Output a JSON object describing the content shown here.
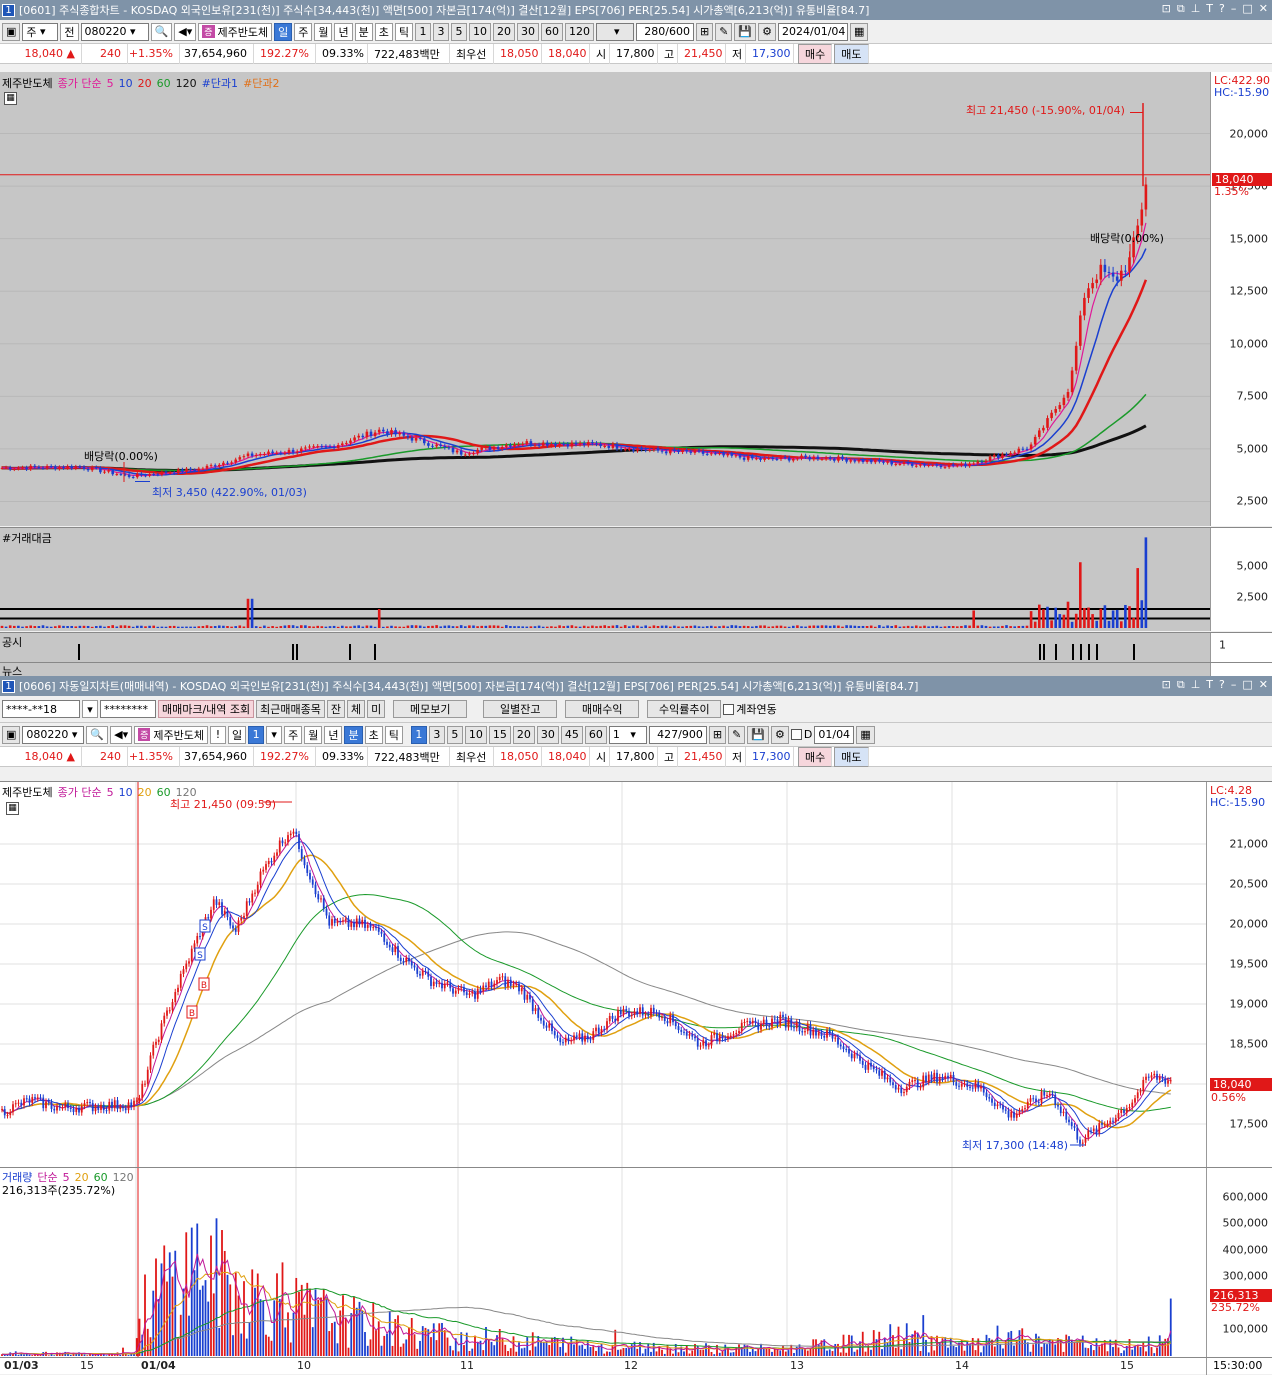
{
  "top": {
    "title": "[0601] 주식종합차트 - KOSDAQ 외국인보유[231(천)] 주식수[34,443(천)] 액면[500] 자본금[174(억)] 결산[12월] EPS[706] PER[25.54] 시가총액[6,213(억)] 유통비율[84.7]",
    "window_num": "1",
    "toolbar": {
      "type": "주",
      "mode": "전",
      "code": "080220",
      "stock_name": "제주반도체",
      "stock_badge": "증",
      "periods": [
        "일",
        "주",
        "월",
        "년",
        "분",
        "초",
        "틱"
      ],
      "active_period": "일",
      "intervals": [
        "1",
        "3",
        "5",
        "10",
        "20",
        "30",
        "60",
        "120"
      ],
      "count": "280",
      "count_total": "/600",
      "date": "2024/01/04"
    },
    "quote": {
      "price": "18,040 ▲",
      "change": "240",
      "pct": "+1.35%",
      "volume": "37,654,960",
      "vol_ratio": "192.27%",
      "turnover": "09.33%",
      "amount": "722,483백만",
      "best_label": "최우선",
      "ask": "18,050",
      "bid": "18,040",
      "open_label": "시",
      "open": "17,800",
      "high_label": "고",
      "high": "21,450",
      "low_label": "저",
      "low": "17,300",
      "buy": "매수",
      "sell": "매도"
    },
    "legend": {
      "name": "제주반도체",
      "ma_label": "종가 단순",
      "ma": [
        "5",
        "10",
        "20",
        "60",
        "120"
      ],
      "avg1": "#단과1",
      "avg2": "#단과2"
    },
    "corner": {
      "lc": "LC:422.90",
      "hc": "HC:-15.90"
    },
    "price_axis": [
      "20,000",
      "17,500",
      "15,000",
      "12,500",
      "10,000",
      "7,500",
      "5,000",
      "2,500"
    ],
    "price_axis_values": [
      20000,
      17500,
      15000,
      12500,
      10000,
      7500,
      5000,
      2500
    ],
    "current_tag": {
      "price": "18,040",
      "pct": "1.35%"
    },
    "ann_high": "최고 21,450 (-15.90%, 01/04)",
    "ann_low": "최저 3,450 (422.90%, 01/03)",
    "ann_div1": "배당락(0.00%)",
    "ann_div2": "배당락(0.00%)",
    "vol_title": "#거래대금",
    "vol_axis": [
      "5,000",
      "2,500"
    ],
    "disclosure_label": "공시",
    "disclosure_axis": "1",
    "news_label": "뉴스",
    "colors": {
      "ma5": "#e01898",
      "ma10": "#1a3fd0",
      "ma20": "#e01818",
      "ma60": "#1a9a2a",
      "ma120": "#111111"
    }
  },
  "bottom": {
    "title": "[0606] 자동일지차트(매매내역) - KOSDAQ 외국인보유[231(천)] 주식수[34,443(천)] 액면[500] 자본금[174(억)] 결산[12월] EPS[706] PER[25.54] 시가총액[6,213(억)] 유통비율[84.7]",
    "window_num": "1",
    "account": {
      "id": "****-**18",
      "pw": "********",
      "btn_mark": "매매마크/내역 조회",
      "btn_recent": "최근매매종목",
      "b1": "잔",
      "b2": "체",
      "b3": "미",
      "btn_memo": "메모보기",
      "btn_daily": "일별잔고",
      "btn_profit": "매매수익",
      "btn_return": "수익률추이",
      "chk_link": "계좌연동"
    },
    "toolbar": {
      "code": "080220",
      "stock_name": "제주반도체",
      "stock_badge": "증",
      "periods": [
        "일",
        "1",
        "주",
        "월",
        "년",
        "분",
        "초",
        "틱"
      ],
      "intervals": [
        "1",
        "3",
        "5",
        "10",
        "15",
        "20",
        "30",
        "45",
        "60"
      ],
      "unit": "1",
      "count": "427",
      "count_total": "/900",
      "chk_d": "D",
      "date": "01/04"
    },
    "quote": {
      "price": "18,040 ▲",
      "change": "240",
      "pct": "+1.35%",
      "volume": "37,654,960",
      "vol_ratio": "192.27%",
      "turnover": "09.33%",
      "amount": "722,483백만",
      "best_label": "최우선",
      "ask": "18,050",
      "bid": "18,040",
      "open_label": "시",
      "open": "17,800",
      "high_label": "고",
      "high": "21,450",
      "low_label": "저",
      "low": "17,300",
      "buy": "매수",
      "sell": "매도"
    },
    "legend": {
      "name": "제주반도체",
      "ma_label": "종가 단순",
      "ma": [
        "5",
        "10",
        "20",
        "60",
        "120"
      ]
    },
    "corner": {
      "lc": "LC:4.28",
      "hc": "HC:-15.90"
    },
    "price_axis": [
      "21,000",
      "20,500",
      "20,000",
      "19,500",
      "19,000",
      "18,500",
      "17,500"
    ],
    "price_axis_values": [
      21000,
      20500,
      20000,
      19500,
      19000,
      18500,
      17500
    ],
    "current_tag": {
      "price": "18,040",
      "pct": "0.56%"
    },
    "ann_high": "최고 21,450 (09:59)",
    "ann_low": "최저 17,300 (14:48)",
    "marks": [
      "S",
      "S",
      "B",
      "B"
    ],
    "vol_legend": {
      "name": "거래량",
      "ma_label": "단순",
      "ma": [
        "5",
        "20",
        "60",
        "120"
      ],
      "current": "216,313주(235.72%)"
    },
    "vol_axis": [
      "600,000",
      "500,000",
      "400,000",
      "300,000",
      "100,000"
    ],
    "vol_axis_values": [
      600000,
      500000,
      400000,
      300000,
      100000
    ],
    "vol_tag": {
      "value": "216,313",
      "pct": "235.72%"
    },
    "x_labels": [
      "01/03",
      "15",
      "01/04",
      "10",
      "11",
      "12",
      "13",
      "14",
      "15"
    ],
    "time_label": "15:30:00"
  }
}
